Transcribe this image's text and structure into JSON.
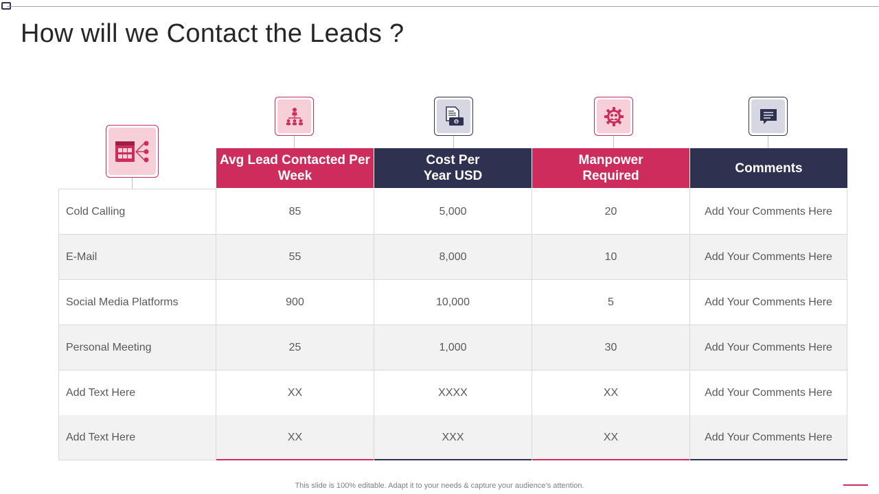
{
  "slide": {
    "title": "How will we Contact the Leads ?",
    "footer": "This slide is 100% editable. Adapt it to your needs & capture your audience’s attention."
  },
  "colors": {
    "accent_pink": "#cc2d5d",
    "accent_navy": "#2f3150",
    "light_pink": "#f6cfd9",
    "light_navy": "#d6d7e3"
  },
  "icons": [
    "lead-channels-icon",
    "org-hierarchy-icon",
    "invoice-money-icon",
    "gear-people-icon",
    "chat-message-icon"
  ],
  "table": {
    "headers": [
      "Avg Lead Contacted Per Week",
      "Cost Per Year USD",
      "Manpower Required",
      "Comments"
    ],
    "rows": [
      {
        "method": "Cold Calling",
        "avg": "85",
        "cost": "5,000",
        "manpower": "20",
        "comment": "Add Your Comments Here"
      },
      {
        "method": "E-Mail",
        "avg": "55",
        "cost": "8,000",
        "manpower": "10",
        "comment": "Add Your Comments Here"
      },
      {
        "method": "Social Media Platforms",
        "avg": "900",
        "cost": "10,000",
        "manpower": "5",
        "comment": "Add Your Comments Here"
      },
      {
        "method": "Personal Meeting",
        "avg": "25",
        "cost": "1,000",
        "manpower": "30",
        "comment": "Add Your Comments Here"
      },
      {
        "method": "Add Text Here",
        "avg": "XX",
        "cost": "XXXX",
        "manpower": "XX",
        "comment": "Add Your Comments Here"
      },
      {
        "method": "Add Text Here",
        "avg": "XX",
        "cost": "XXX",
        "manpower": "XX",
        "comment": "Add Your Comments Here"
      }
    ]
  }
}
